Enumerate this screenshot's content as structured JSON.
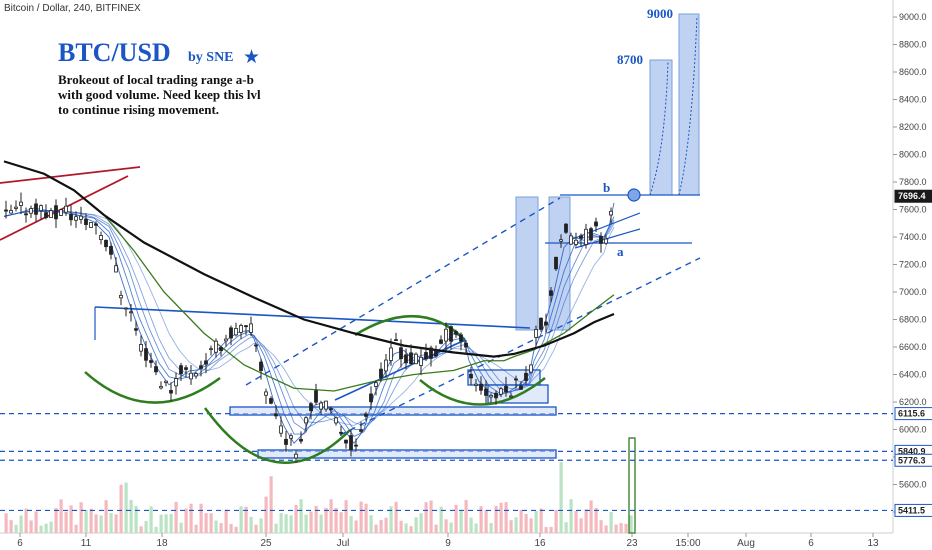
{
  "symbol": "Bitcoin / Dollar, 240, BITFINEX",
  "title": "BTC/USD",
  "byline": "by SNE",
  "star_icon": "star-icon",
  "description": [
    "Brokeout of local trading range a-b",
    "with good volume. Need keep this lvl",
    "to continue rising movement."
  ],
  "targets": [
    "8700",
    "9000"
  ],
  "points": {
    "a": "a",
    "b": "b"
  },
  "colors": {
    "accent": "#1a56c4",
    "candle": "#222222",
    "sma_long": "#111111",
    "sma_mid": "#3a7a1a",
    "fan": "#1a56c4",
    "wedge": "#b0182a",
    "volume": "#f4b8bf",
    "volume_up": "#b9e3c3"
  },
  "chart_data": {
    "type": "candlestick",
    "interval": "240",
    "exchange": "BITFINEX",
    "ylim": [
      5300,
      9100
    ],
    "y_ticks": [
      5400,
      5600,
      5800,
      6000,
      6200,
      6400,
      6600,
      6800,
      7000,
      7200,
      7400,
      7600,
      7800,
      8000,
      8200,
      8400,
      8600,
      8800,
      9000
    ],
    "x_ticks": [
      "6",
      "11",
      "18",
      "25",
      "Jul",
      "9",
      "16",
      "23",
      "15:00",
      "Aug",
      "6",
      "13"
    ],
    "price_labels": [
      {
        "value": 7696.4,
        "label": "7696.4",
        "style": "current"
      },
      {
        "value": 6115.6,
        "label": "6115.6",
        "style": "level"
      },
      {
        "value": 5840.9,
        "label": "5840.9",
        "style": "level"
      },
      {
        "value": 5776.3,
        "label": "5776.3",
        "style": "level"
      },
      {
        "value": 5411.5,
        "label": "5411.5",
        "style": "level"
      }
    ],
    "close_series": [
      [
        0,
        7550
      ],
      [
        3,
        7600
      ],
      [
        6,
        7620
      ],
      [
        9,
        7560
      ],
      [
        12,
        7590
      ],
      [
        15,
        7520
      ],
      [
        18,
        7500
      ],
      [
        21,
        7300
      ],
      [
        23,
        7000
      ],
      [
        25,
        6850
      ],
      [
        27,
        6600
      ],
      [
        29,
        6500
      ],
      [
        31,
        6350
      ],
      [
        33,
        6300
      ],
      [
        35,
        6450
      ],
      [
        37,
        6400
      ],
      [
        39,
        6470
      ],
      [
        41,
        6550
      ],
      [
        43,
        6630
      ],
      [
        45,
        6700
      ],
      [
        47,
        6720
      ],
      [
        49,
        6720
      ],
      [
        50,
        6600
      ],
      [
        52,
        6300
      ],
      [
        54,
        6100
      ],
      [
        56,
        5950
      ],
      [
        58,
        5850
      ],
      [
        60,
        6100
      ],
      [
        62,
        6250
      ],
      [
        64,
        6150
      ],
      [
        66,
        6050
      ],
      [
        68,
        5950
      ],
      [
        70,
        5850
      ],
      [
        72,
        6150
      ],
      [
        74,
        6350
      ],
      [
        76,
        6450
      ],
      [
        78,
        6650
      ],
      [
        80,
        6500
      ],
      [
        82,
        6500
      ],
      [
        84,
        6520
      ],
      [
        86,
        6560
      ],
      [
        88,
        6680
      ],
      [
        90,
        6720
      ],
      [
        92,
        6600
      ],
      [
        93,
        6400
      ],
      [
        95,
        6300
      ],
      [
        97,
        6250
      ],
      [
        99,
        6250
      ],
      [
        101,
        6300
      ],
      [
        103,
        6350
      ],
      [
        105,
        6450
      ],
      [
        106,
        6700
      ],
      [
        108,
        6800
      ],
      [
        110,
        7200
      ],
      [
        112,
        7450
      ],
      [
        114,
        7350
      ],
      [
        116,
        7400
      ],
      [
        118,
        7450
      ],
      [
        120,
        7350
      ],
      [
        121,
        7600
      ],
      [
        122,
        7696.4
      ]
    ],
    "sma_long": [
      [
        0,
        7950
      ],
      [
        8,
        7860
      ],
      [
        14,
        7740
      ],
      [
        20,
        7560
      ],
      [
        28,
        7360
      ],
      [
        40,
        7130
      ],
      [
        50,
        6960
      ],
      [
        60,
        6800
      ],
      [
        70,
        6700
      ],
      [
        80,
        6610
      ],
      [
        90,
        6560
      ],
      [
        98,
        6530
      ],
      [
        102,
        6550
      ],
      [
        108,
        6610
      ],
      [
        114,
        6700
      ],
      [
        118,
        6780
      ],
      [
        122,
        6840
      ]
    ],
    "sma_mid": [
      [
        20,
        7560
      ],
      [
        26,
        7300
      ],
      [
        32,
        7000
      ],
      [
        40,
        6700
      ],
      [
        48,
        6470
      ],
      [
        58,
        6300
      ],
      [
        66,
        6280
      ],
      [
        74,
        6350
      ],
      [
        82,
        6400
      ],
      [
        90,
        6430
      ],
      [
        96,
        6500
      ],
      [
        100,
        6500
      ],
      [
        102,
        6530
      ],
      [
        106,
        6580
      ],
      [
        112,
        6700
      ],
      [
        118,
        6870
      ],
      [
        122,
        6980
      ]
    ],
    "horizontal_levels": [
      6115.6,
      5840.9,
      5776.3,
      5411.5
    ],
    "projected_targets": [
      8700,
      9000
    ],
    "volume_max_label_index": 122
  }
}
